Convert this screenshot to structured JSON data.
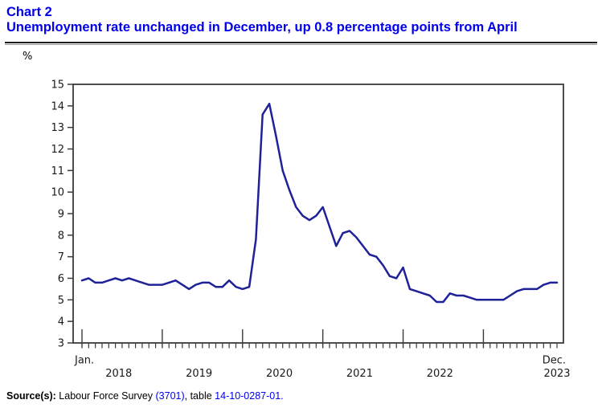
{
  "header": {
    "chart_label": "Chart 2",
    "title": "Unemployment rate unchanged in December, up 0.8 percentage points from April"
  },
  "chart_data": {
    "type": "line",
    "unit_label": "%",
    "ylabel": "%",
    "ylim": [
      3,
      15
    ],
    "y_ticks": [
      3,
      4,
      5,
      6,
      7,
      8,
      9,
      10,
      11,
      12,
      13,
      14,
      15
    ],
    "x_first_month_label": "Jan.",
    "x_last_month_label": "Dec.",
    "x_year_labels": [
      "2018",
      "2019",
      "2020",
      "2021",
      "2022",
      "2023"
    ],
    "months_per_year": 12,
    "grid": "off",
    "legend": "none",
    "line_color": "#1e2198",
    "axis_color": "#3a3a3a",
    "series": [
      {
        "name": "Unemployment rate (%)",
        "start": "January 2018",
        "end": "December 2023",
        "values": [
          5.9,
          6.0,
          5.8,
          5.8,
          5.9,
          6.0,
          5.9,
          6.0,
          5.9,
          5.8,
          5.7,
          5.7,
          5.7,
          5.8,
          5.9,
          5.7,
          5.5,
          5.7,
          5.8,
          5.8,
          5.6,
          5.6,
          5.9,
          5.6,
          5.5,
          5.6,
          7.8,
          13.6,
          14.1,
          12.6,
          11.0,
          10.1,
          9.3,
          8.9,
          8.7,
          8.9,
          9.3,
          8.4,
          7.5,
          8.1,
          8.2,
          7.9,
          7.5,
          7.1,
          7.0,
          6.6,
          6.1,
          6.0,
          6.5,
          5.5,
          5.4,
          5.3,
          5.2,
          4.9,
          4.9,
          5.3,
          5.2,
          5.2,
          5.1,
          5.0,
          5.0,
          5.0,
          5.0,
          5.0,
          5.2,
          5.4,
          5.5,
          5.5,
          5.5,
          5.7,
          5.8,
          5.8
        ]
      }
    ]
  },
  "footer": {
    "source_label": "Source(s):",
    "survey_text": " Labour Force Survey ",
    "survey_link": "(3701)",
    "separator": ", table ",
    "table_link": "14-10-0287-01."
  },
  "colors": {
    "title": "#0000ee",
    "link": "#0000ee",
    "line": "#1e2198",
    "axis": "#3a3a3a"
  }
}
